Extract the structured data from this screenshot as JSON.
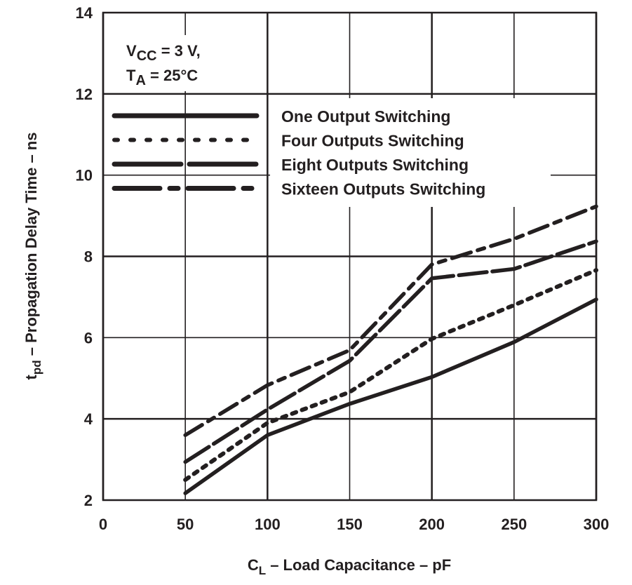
{
  "chart_data": {
    "type": "line",
    "xlabel": {
      "main": "C",
      "sub": "L",
      "rest": " – Load Capacitance – pF"
    },
    "ylabel": {
      "main": "t",
      "sub": "pd",
      "rest": " – Propagation Delay Time – ns"
    },
    "xlim": [
      0,
      300
    ],
    "ylim": [
      2,
      14
    ],
    "xticks": [
      0,
      50,
      100,
      150,
      200,
      250,
      300
    ],
    "yticks": [
      2,
      4,
      6,
      8,
      10,
      12,
      14
    ],
    "grid": true,
    "legend_placement": "top-left",
    "annotation": {
      "line1": {
        "main": "V",
        "sub": "CC",
        "rest": " = 3 V,"
      },
      "line2": {
        "main": "T",
        "sub": "A",
        "rest": " = 25°C"
      }
    },
    "color": "#231f20",
    "x": [
      50,
      100,
      150,
      200,
      250,
      300
    ],
    "series": [
      {
        "name": "One Output Switching",
        "style": "solid",
        "values": [
          2.17,
          3.6,
          4.37,
          5.03,
          5.89,
          6.94
        ]
      },
      {
        "name": "Four Outputs Switching",
        "style": "dotted",
        "values": [
          2.5,
          3.9,
          4.66,
          5.97,
          6.8,
          7.66
        ]
      },
      {
        "name": "Eight Outputs Switching",
        "style": "long-dash",
        "values": [
          2.94,
          4.23,
          5.43,
          7.46,
          7.69,
          8.37
        ]
      },
      {
        "name": "Sixteen Outputs Switching",
        "style": "dash-dot",
        "values": [
          3.6,
          4.83,
          5.69,
          7.8,
          8.43,
          9.23
        ]
      }
    ]
  }
}
